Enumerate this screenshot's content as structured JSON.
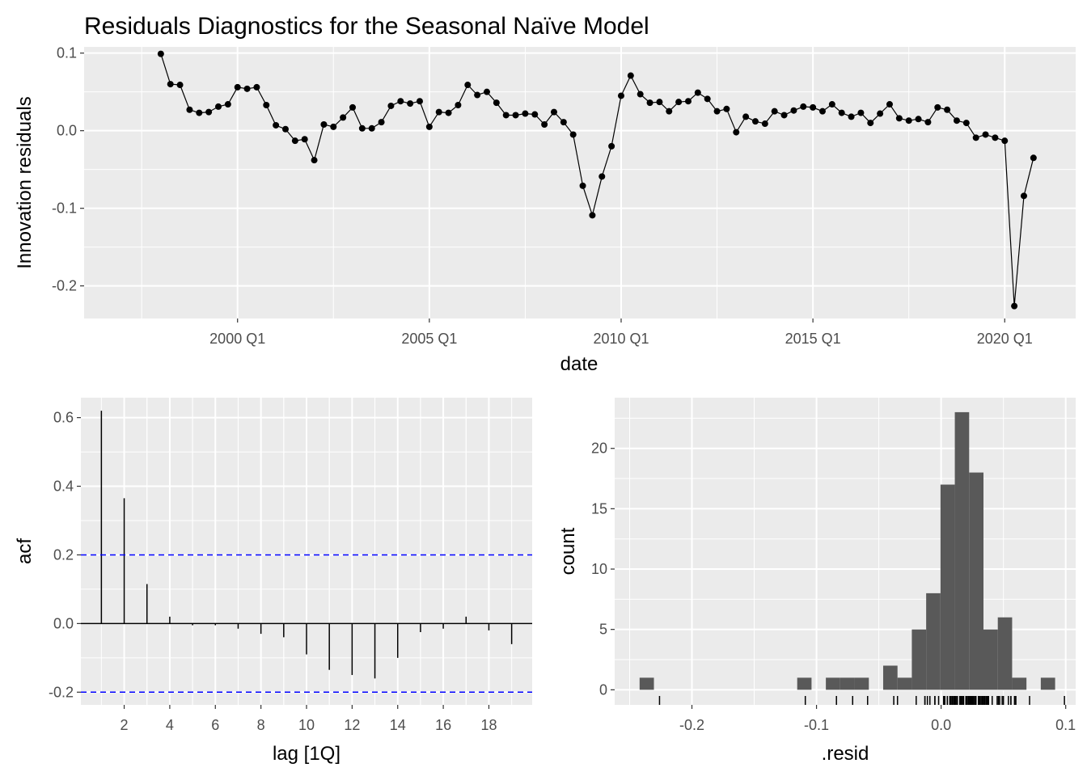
{
  "title": "Residuals Diagnostics for the Seasonal Naïve Model",
  "chart_data": [
    {
      "type": "line",
      "xlabel": "date",
      "ylabel": "Innovation residuals",
      "x_tick_labels": [
        "2000 Q1",
        "2005 Q1",
        "2010 Q1",
        "2015 Q1",
        "2020 Q1"
      ],
      "x_ticks": [
        2000,
        2005,
        2010,
        2015,
        2020
      ],
      "xlim": [
        1996.0,
        2021.85
      ],
      "y_tick_labels": [
        "0.1",
        "0.0",
        "-0.1",
        "-0.2"
      ],
      "y_ticks": [
        0.1,
        0.0,
        -0.1,
        -0.2
      ],
      "ylim": [
        -0.242,
        0.108
      ],
      "x_start": 1998.0,
      "x_step": 0.25,
      "points_shown": true,
      "values": [
        0.099,
        0.06,
        0.059,
        0.027,
        0.023,
        0.024,
        0.031,
        0.034,
        0.056,
        0.054,
        0.056,
        0.033,
        0.007,
        0.002,
        -0.013,
        -0.011,
        -0.038,
        0.008,
        0.005,
        0.017,
        0.03,
        0.003,
        0.003,
        0.011,
        0.032,
        0.038,
        0.035,
        0.038,
        0.005,
        0.024,
        0.023,
        0.033,
        0.059,
        0.046,
        0.05,
        0.036,
        0.02,
        0.02,
        0.022,
        0.021,
        0.008,
        0.024,
        0.011,
        -0.005,
        -0.071,
        -0.109,
        -0.059,
        -0.02,
        0.045,
        0.071,
        0.047,
        0.036,
        0.037,
        0.025,
        0.037,
        0.038,
        0.049,
        0.041,
        0.025,
        0.028,
        -0.002,
        0.018,
        0.012,
        0.009,
        0.025,
        0.02,
        0.026,
        0.031,
        0.03,
        0.025,
        0.034,
        0.023,
        0.018,
        0.023,
        0.01,
        0.022,
        0.034,
        0.016,
        0.013,
        0.015,
        0.011,
        0.03,
        0.027,
        0.013,
        0.01,
        -0.009,
        -0.005,
        -0.009,
        -0.013,
        -0.226,
        -0.084,
        -0.035
      ]
    },
    {
      "type": "bar",
      "xlabel": "lag [1Q]",
      "ylabel": "acf",
      "x_ticks": [
        2,
        4,
        6,
        8,
        10,
        12,
        14,
        16,
        18
      ],
      "xlim": [
        0.1,
        19.9
      ],
      "y_tick_labels": [
        "0.6",
        "0.4",
        "0.2",
        "0.0",
        "-0.2"
      ],
      "y_ticks": [
        0.6,
        0.4,
        0.2,
        0.0,
        -0.2
      ],
      "ylim": [
        -0.237,
        0.658
      ],
      "lags": [
        1,
        2,
        3,
        4,
        5,
        6,
        7,
        8,
        9,
        10,
        11,
        12,
        13,
        14,
        15,
        16,
        17,
        18,
        19
      ],
      "values": [
        0.62,
        0.365,
        0.115,
        0.02,
        -0.005,
        -0.005,
        -0.015,
        -0.03,
        -0.04,
        -0.09,
        -0.135,
        -0.15,
        -0.16,
        -0.1,
        -0.025,
        -0.015,
        0.02,
        -0.02,
        -0.06
      ],
      "confidence_bound": 0.2,
      "colors": {
        "bound": "#0000ff",
        "spike": "#000000"
      }
    },
    {
      "type": "bar",
      "subtype": "histogram",
      "xlabel": ".resid",
      "ylabel": "count",
      "x_tick_labels": [
        "-0.2",
        "-0.1",
        "0.0",
        "0.1"
      ],
      "x_ticks": [
        -0.2,
        -0.1,
        0.0,
        0.1
      ],
      "xlim": [
        -0.262,
        0.108
      ],
      "y_tick_labels": [
        "0",
        "5",
        "10",
        "15",
        "20"
      ],
      "y_ticks": [
        0,
        5,
        10,
        15,
        20
      ],
      "ylim": [
        -1.25,
        24.2
      ],
      "bin_width": 0.0115,
      "bin_start": -0.242,
      "counts": [
        1,
        0,
        0,
        0,
        0,
        0,
        0,
        0,
        0,
        0,
        0,
        1,
        0,
        1,
        1,
        1,
        0,
        2,
        1,
        5,
        8,
        17,
        23,
        18,
        5,
        6,
        1,
        0,
        1
      ],
      "rug_shown": true,
      "colors": {
        "bar": "#595959"
      }
    }
  ]
}
